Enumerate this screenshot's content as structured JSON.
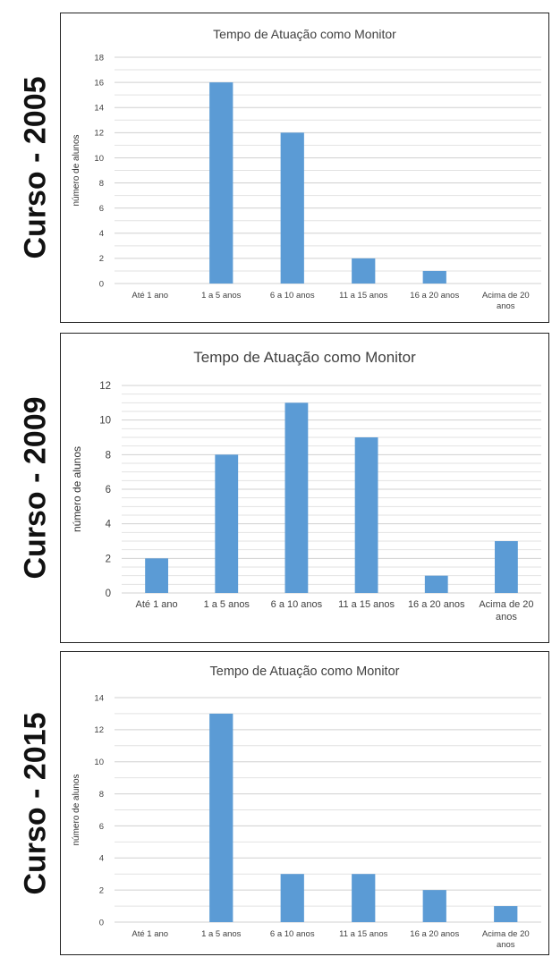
{
  "side_labels": [
    "Curso - 2005",
    "Curso - 2009",
    "Curso - 2015"
  ],
  "chart_data": [
    {
      "type": "bar",
      "title": "Tempo de Atuação como Monitor",
      "ylabel": "número de alunos",
      "xlabel": "",
      "categories": [
        "Até 1 ano",
        "1 a 5 anos",
        "6 a 10 anos",
        "11 a 15 anos",
        "16 a 20 anos",
        "Acima de 20 anos"
      ],
      "values": [
        0,
        16,
        12,
        2,
        1,
        0
      ],
      "ylim": [
        0,
        18
      ],
      "yticks": [
        0,
        2,
        4,
        6,
        8,
        10,
        12,
        14,
        16,
        18
      ],
      "grid": true,
      "color": "#5b9bd5"
    },
    {
      "type": "bar",
      "title": "Tempo de Atuação como Monitor",
      "ylabel": "número de alunos",
      "xlabel": "",
      "categories": [
        "Até 1 ano",
        "1 a 5 anos",
        "6 a 10 anos",
        "11 a 15 anos",
        "16 a 20 anos",
        "Acima de 20 anos"
      ],
      "values": [
        2,
        8,
        11,
        9,
        1,
        3
      ],
      "ylim": [
        0,
        12
      ],
      "yticks": [
        0,
        2,
        4,
        6,
        8,
        10,
        12
      ],
      "grid": true,
      "color": "#5b9bd5"
    },
    {
      "type": "bar",
      "title": "Tempo de Atuação como Monitor",
      "ylabel": "número de alunos",
      "xlabel": "",
      "categories": [
        "Até 1 ano",
        "1 a 5 anos",
        "6 a 10 anos",
        "11 a 15 anos",
        "16 a 20 anos",
        "Acima de 20 anos"
      ],
      "values": [
        0,
        13,
        3,
        3,
        2,
        1
      ],
      "ylim": [
        0,
        14
      ],
      "yticks": [
        0,
        2,
        4,
        6,
        8,
        10,
        12,
        14
      ],
      "grid": true,
      "color": "#5b9bd5"
    }
  ]
}
